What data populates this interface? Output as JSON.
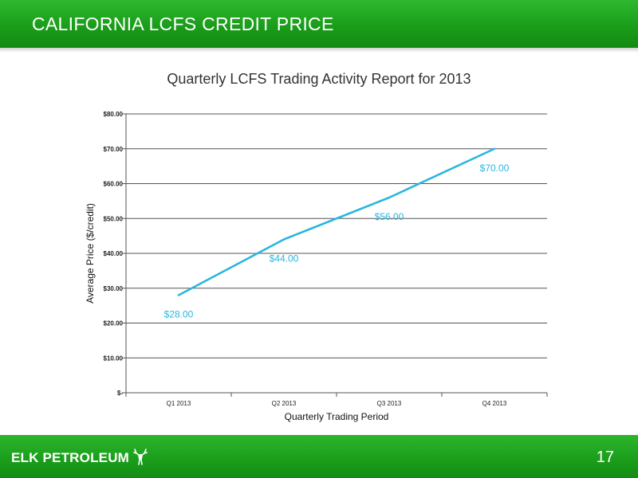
{
  "header": {
    "title": "CALIFORNIA LCFS CREDIT PRICE"
  },
  "footer": {
    "logo_text": "ELK PETROLEUM",
    "page_number": "17"
  },
  "colors": {
    "brand_green": "#1a9d1a",
    "series_line": "#29b6e0"
  },
  "chart_data": {
    "type": "line",
    "title": "Quarterly LCFS Trading Activity Report for 2013",
    "xlabel": "Quarterly Trading Period",
    "ylabel": "Average Price ($/credit)",
    "categories": [
      "Q1 2013",
      "Q2 2013",
      "Q3 2013",
      "Q4 2013"
    ],
    "series": [
      {
        "values": [
          28,
          44,
          56,
          70
        ],
        "labels": [
          "$28.00",
          "$44.00",
          "$56.00",
          "$70.00"
        ]
      }
    ],
    "ylim": [
      0,
      80
    ],
    "yticks": [
      0,
      10,
      20,
      30,
      40,
      50,
      60,
      70,
      80
    ],
    "ytick_labels": [
      "$-",
      "$10.00",
      "$20.00",
      "$30.00",
      "$40.00",
      "$50.00",
      "$60.00",
      "$70.00",
      "$80.00"
    ],
    "grid": true,
    "legend": "none"
  }
}
